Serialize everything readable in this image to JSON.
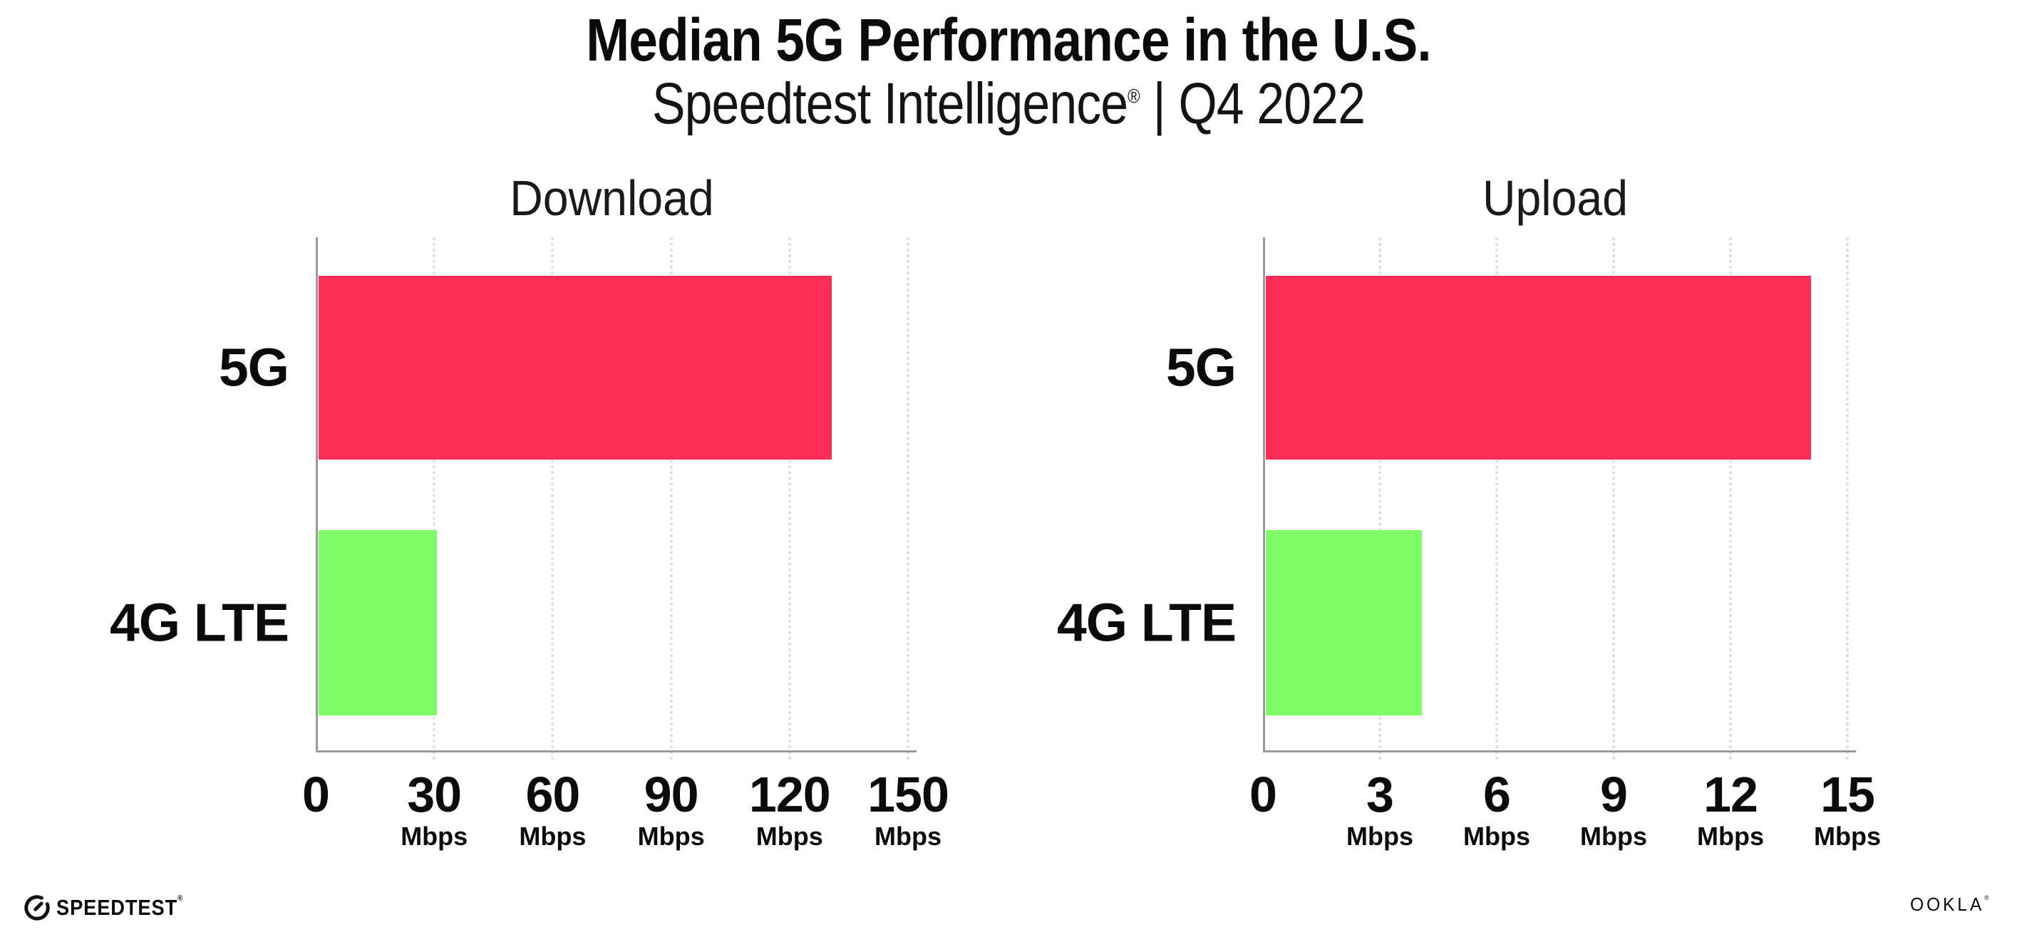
{
  "header": {
    "title": "Median 5G Performance in the U.S.",
    "subtitle": {
      "brand": "Speedtest Intelligence",
      "registered_mark": "®",
      "separator": "|",
      "period": "Q4 2022"
    }
  },
  "chart_data": [
    {
      "type": "bar",
      "orientation": "horizontal",
      "title": "Download",
      "categories": [
        "5G",
        "4G LTE"
      ],
      "values": [
        130,
        30
      ],
      "unit": "Mbps",
      "xlim": [
        0,
        150
      ],
      "xticks": [
        0,
        30,
        60,
        90,
        120,
        150
      ],
      "bar_colors": [
        "#FD2E55",
        "#7DFC66"
      ],
      "grid": "dotted vertical gridlines at each tick",
      "legend": "none"
    },
    {
      "type": "bar",
      "orientation": "horizontal",
      "title": "Upload",
      "categories": [
        "5G",
        "4G LTE"
      ],
      "values": [
        14,
        4
      ],
      "unit": "Mbps",
      "xlim": [
        0,
        15
      ],
      "xticks": [
        0,
        3,
        6,
        9,
        12,
        15
      ],
      "bar_colors": [
        "#FD2E55",
        "#7DFC66"
      ],
      "grid": "dotted vertical gridlines at each tick",
      "legend": "none"
    }
  ],
  "footer": {
    "speedtest_wordmark": "SPEEDTEST",
    "speedtest_trademark": "®",
    "ookla_wordmark": "OOKLA",
    "ookla_trademark": "®"
  },
  "colors": {
    "bar_5g": "#FD2E55",
    "bar_4g_lte": "#7DFC66",
    "axis": "#9A9AA2",
    "gridline": "#DCDCE8",
    "text": "#0B0B0B"
  }
}
